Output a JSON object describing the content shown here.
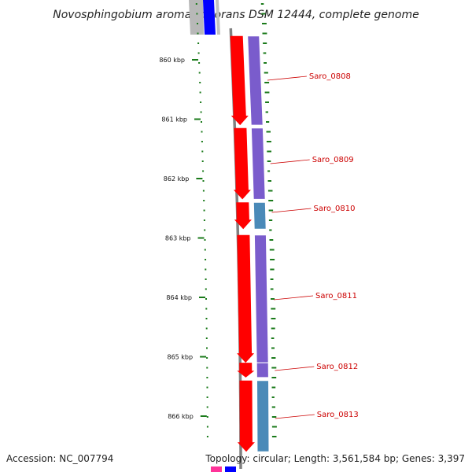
{
  "title": "Novosphingobium aromaticivorans DSM 12444, complete genome",
  "accession": "Accession: NC_007794",
  "summary": "Topology: circular; Length: 3,561,584 bp; Genes: 3,397",
  "ticks": [
    {
      "kbp": 860,
      "label": "860 kbp"
    },
    {
      "kbp": 861,
      "label": "861 kbp"
    },
    {
      "kbp": 862,
      "label": "862 kbp"
    },
    {
      "kbp": 863,
      "label": "863 kbp"
    },
    {
      "kbp": 864,
      "label": "864 kbp"
    },
    {
      "kbp": 865,
      "label": "865 kbp"
    },
    {
      "kbp": 866,
      "label": "866 kbp"
    }
  ],
  "genes": [
    {
      "name": "Saro_0808",
      "start_kbp": 859.6,
      "end_kbp": 861.1,
      "strand": "-",
      "cog_color": "#7a5ccc"
    },
    {
      "name": "Saro_0809",
      "start_kbp": 861.15,
      "end_kbp": 862.35,
      "strand": "-",
      "cog_color": "#7a5ccc"
    },
    {
      "name": "Saro_0810",
      "start_kbp": 862.4,
      "end_kbp": 862.85,
      "strand": "-",
      "cog_color": "#4a8ab8"
    },
    {
      "name": "Saro_0811",
      "start_kbp": 862.95,
      "end_kbp": 865.1,
      "strand": "-",
      "cog_color": "#7a5ccc"
    },
    {
      "name": "Saro_0812",
      "start_kbp": 865.1,
      "end_kbp": 865.35,
      "strand": "-",
      "cog_color": "#7a5ccc"
    },
    {
      "name": "Saro_0813",
      "start_kbp": 865.4,
      "end_kbp": 866.6,
      "strand": "-",
      "cog_color": "#4a8ab8"
    }
  ],
  "colors": {
    "backbone": "#808080",
    "cds": "#ff0000",
    "label": "#cc0000",
    "gc_skew": "#1a7a1a",
    "top_partial": "#0000ff",
    "bottom_partial_magenta": "#ff3399",
    "bottom_partial_blue": "#0000ff"
  }
}
